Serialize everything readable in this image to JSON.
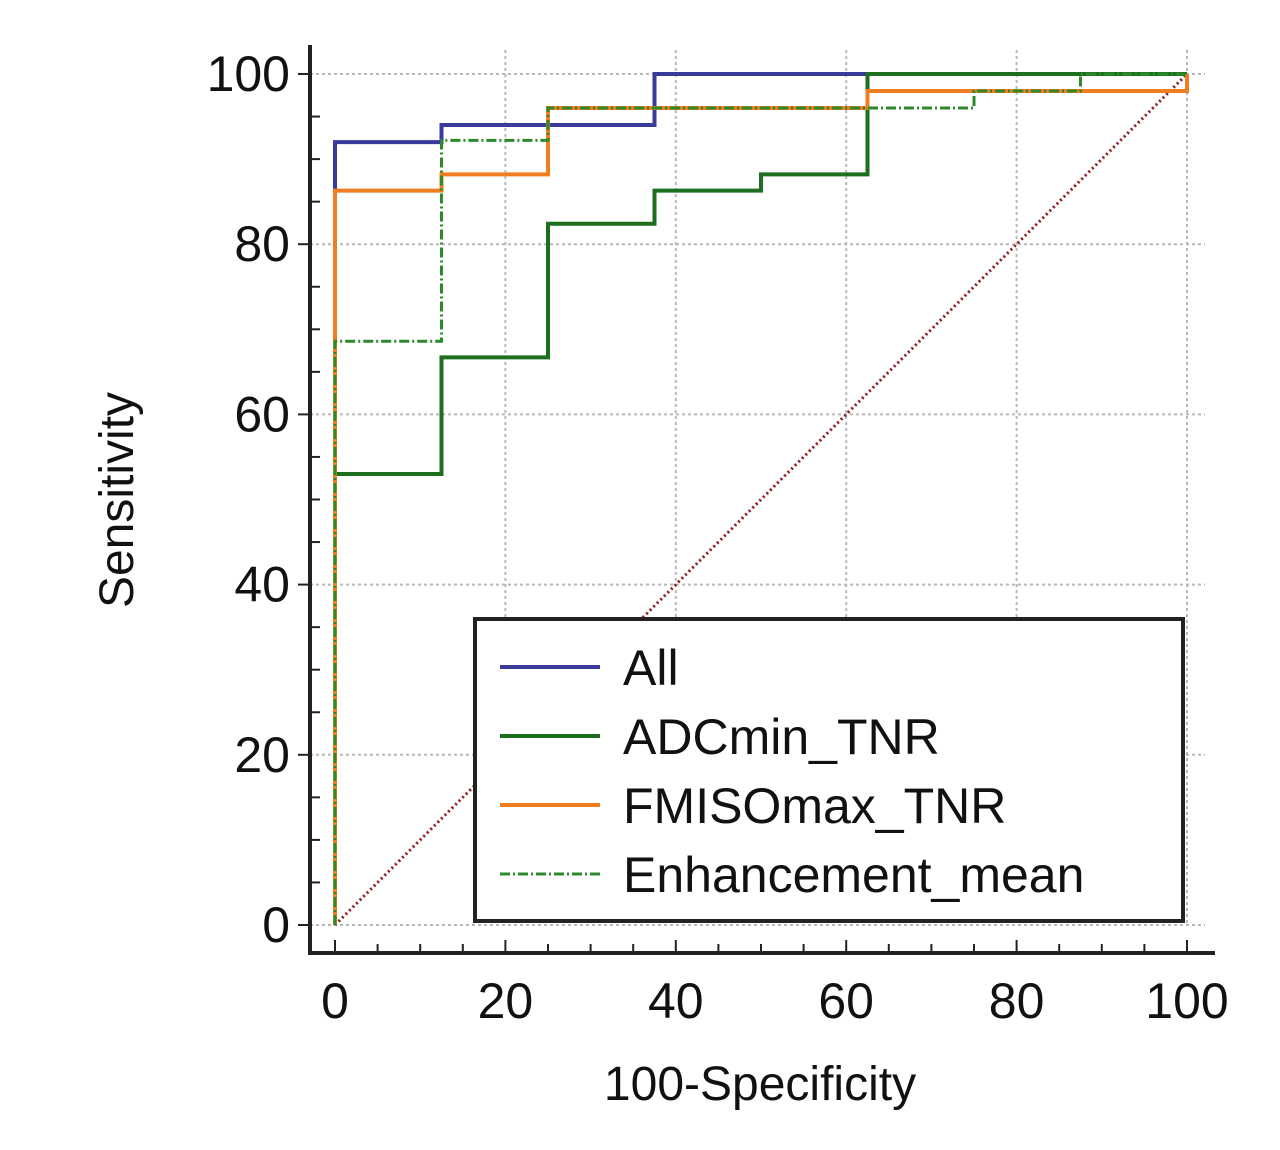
{
  "chart_data": {
    "type": "line",
    "title": "",
    "xlabel": "100-Specificity",
    "ylabel": "Sensitivity",
    "xlim": [
      0,
      100
    ],
    "ylim": [
      0,
      100
    ],
    "xticks": [
      0,
      20,
      40,
      60,
      80,
      100
    ],
    "yticks": [
      0,
      20,
      40,
      60,
      80,
      100
    ],
    "grid": true,
    "legend_position": "bottom-right",
    "series": [
      {
        "name": "All",
        "color": "#3a3a9a",
        "style": "solid",
        "points": [
          [
            0,
            0
          ],
          [
            0,
            92
          ],
          [
            12.5,
            92
          ],
          [
            12.5,
            94
          ],
          [
            37.5,
            94
          ],
          [
            37.5,
            100
          ],
          [
            62.5,
            100
          ],
          [
            100,
            100
          ]
        ]
      },
      {
        "name": "ADCmin_TNR",
        "color": "#1d6e1d",
        "style": "solid",
        "points": [
          [
            0,
            0
          ],
          [
            0,
            53
          ],
          [
            12.5,
            53
          ],
          [
            12.5,
            66.7
          ],
          [
            25,
            66.7
          ],
          [
            25,
            82.4
          ],
          [
            37.5,
            82.4
          ],
          [
            37.5,
            86.3
          ],
          [
            50,
            86.3
          ],
          [
            50,
            88.2
          ],
          [
            62.5,
            88.2
          ],
          [
            62.5,
            100
          ],
          [
            100,
            100
          ]
        ]
      },
      {
        "name": "FMISOmax_TNR",
        "color": "#f07d1f",
        "style": "solid",
        "points": [
          [
            0,
            0
          ],
          [
            0,
            86.3
          ],
          [
            12.5,
            86.3
          ],
          [
            12.5,
            88.2
          ],
          [
            25,
            88.2
          ],
          [
            25,
            96
          ],
          [
            62.5,
            96
          ],
          [
            62.5,
            98
          ],
          [
            100,
            98
          ],
          [
            100,
            100
          ]
        ]
      },
      {
        "name": "Enhancement_mean",
        "color": "#2b8a2b",
        "style": "dashdot",
        "points": [
          [
            0,
            0
          ],
          [
            0,
            68.6
          ],
          [
            12.5,
            68.6
          ],
          [
            12.5,
            92.2
          ],
          [
            25,
            92.2
          ],
          [
            25,
            96
          ],
          [
            75,
            96
          ],
          [
            75,
            98
          ],
          [
            87.5,
            98
          ],
          [
            87.5,
            100
          ],
          [
            100,
            100
          ]
        ]
      }
    ],
    "reference_line": {
      "color": "#8b1a1a",
      "style": "dotted",
      "points": [
        [
          0,
          0
        ],
        [
          100,
          100
        ]
      ]
    }
  }
}
